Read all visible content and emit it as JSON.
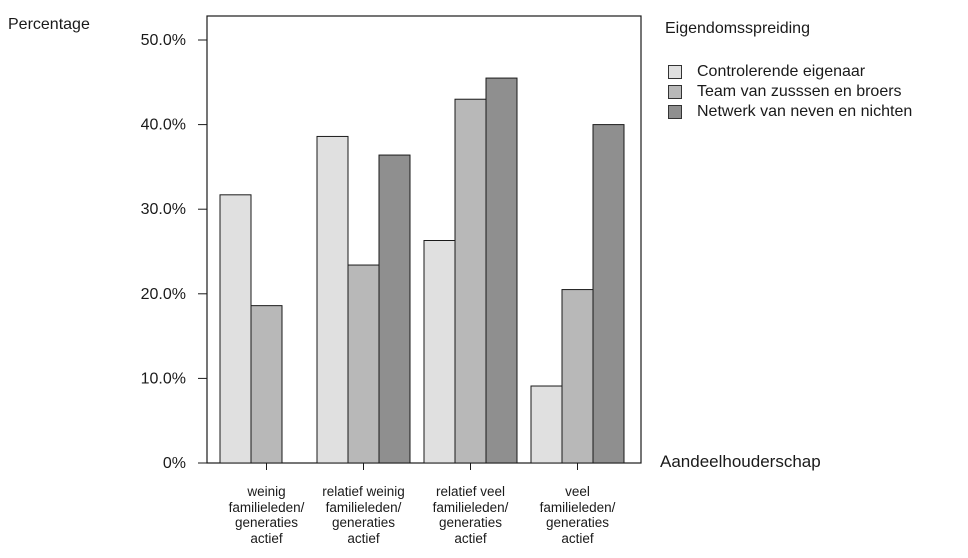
{
  "chart_data": {
    "type": "bar",
    "ylabel": "Percentage",
    "xlabel": "Aandeelhouderschap",
    "legend_title": "Eigendomsspreiding",
    "legend_position": "top-right",
    "categories": [
      [
        "weinig",
        "familieleden/",
        "generaties",
        "actief"
      ],
      [
        "relatief weinig",
        "familieleden/",
        "generaties",
        "actief"
      ],
      [
        "relatief veel",
        "familieleden/",
        "generaties",
        "actief"
      ],
      [
        "veel",
        "familieleden/",
        "generaties",
        "actief"
      ]
    ],
    "series": [
      {
        "name": "Controlerende eigenaar",
        "color": "#e0e0e0",
        "values": [
          31.7,
          38.6,
          26.3,
          9.1
        ]
      },
      {
        "name": "Team van zusssen en broers",
        "color": "#b8b8b8",
        "values": [
          18.6,
          23.4,
          43.0,
          20.5
        ]
      },
      {
        "name": "Netwerk van neven en nichten",
        "color": "#8f8f8f",
        "values": [
          null,
          36.4,
          45.5,
          40.0
        ]
      }
    ],
    "ylim": [
      0,
      50
    ],
    "yticks": [
      0,
      10,
      20,
      30,
      40,
      50
    ],
    "ytick_labels": [
      "0%",
      "10.0%",
      "20.0%",
      "30.0%",
      "40.0%",
      "50.0%"
    ],
    "grid": false
  }
}
